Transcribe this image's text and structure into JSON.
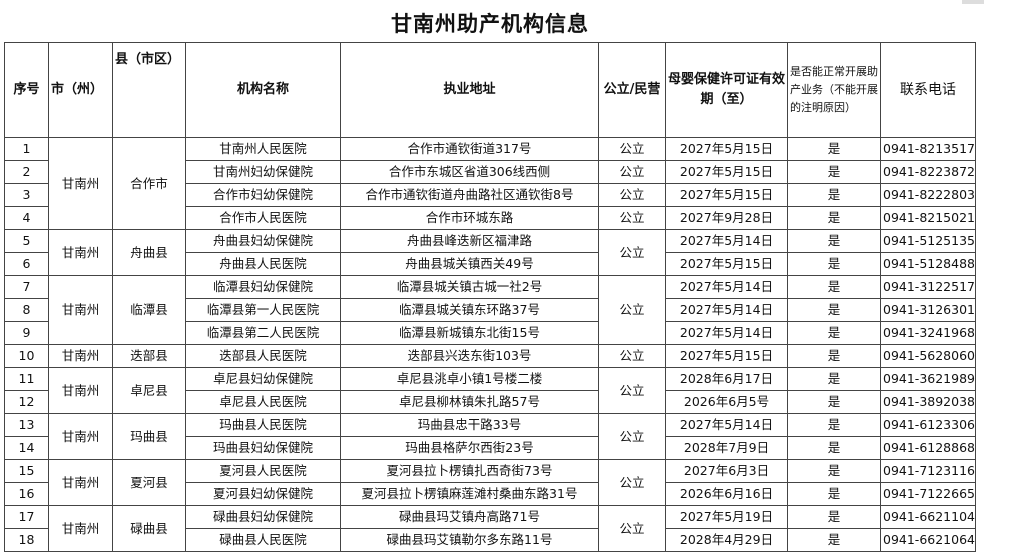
{
  "title": "甘南州助产机构信息",
  "headers": [
    "序号",
    "市（州）",
    "县（市区）",
    "机构名称",
    "执业地址",
    "公立/民营",
    "母婴保健许可证有效期（至）",
    "是否能正常开展助产业务（不能开展的注明原因）",
    "联系电话"
  ],
  "groups": [
    {
      "city": "甘南州",
      "county": "合作市",
      "type_merged": false,
      "rows": [
        {
          "no": "1",
          "name": "甘南州人民医院",
          "address": "合作市通钦街道317号",
          "type": "公立",
          "expiry": "2027年5月15日",
          "available": "是",
          "phone": "0941-8213517"
        },
        {
          "no": "2",
          "name": "甘南州妇幼保健院",
          "address": "合作市东城区省道306线西侧",
          "type": "公立",
          "expiry": "2027年5月15日",
          "available": "是",
          "phone": "0941-8223872"
        },
        {
          "no": "3",
          "name": "合作市妇幼保健院",
          "address": "合作市通钦街道舟曲路社区通钦街8号",
          "type": "公立",
          "expiry": "2027年5月15日",
          "available": "是",
          "phone": "0941-8222803"
        },
        {
          "no": "4",
          "name": "合作市人民医院",
          "address": "合作市环城东路",
          "type": "公立",
          "expiry": "2027年9月28日",
          "available": "是",
          "phone": "0941-8215021"
        }
      ]
    },
    {
      "city": "甘南州",
      "county": "舟曲县",
      "type_merged": true,
      "rows": [
        {
          "no": "5",
          "name": "舟曲县妇幼保健院",
          "address": "舟曲县峰迭新区福津路",
          "type": "公立",
          "expiry": "2027年5月14日",
          "available": "是",
          "phone": "0941-5125135"
        },
        {
          "no": "6",
          "name": "舟曲县人民医院",
          "address": "舟曲县城关镇西关49号",
          "type": "公立",
          "expiry": "2027年5月15日",
          "available": "是",
          "phone": "0941-5128488"
        }
      ]
    },
    {
      "city": "甘南州",
      "county": "临潭县",
      "type_merged": true,
      "rows": [
        {
          "no": "7",
          "name": "临潭县妇幼保健院",
          "address": "临潭县城关镇古城一社2号",
          "type": "公立",
          "expiry": "2027年5月14日",
          "available": "是",
          "phone": "0941-3122517"
        },
        {
          "no": "8",
          "name": "临潭县第一人民医院",
          "address": "临潭县城关镇东环路37号",
          "type": "公立",
          "expiry": "2027年5月14日",
          "available": "是",
          "phone": "0941-3126301"
        },
        {
          "no": "9",
          "name": "临潭县第二人民医院",
          "address": "临潭县新城镇东北街15号",
          "type": "公立",
          "expiry": "2027年5月14日",
          "available": "是",
          "phone": "0941-3241968"
        }
      ]
    },
    {
      "city": "甘南州",
      "county": "迭部县",
      "type_merged": false,
      "rows": [
        {
          "no": "10",
          "name": "迭部县人民医院",
          "address": "迭部县兴迭东街103号",
          "type": "公立",
          "expiry": "2027年5月15日",
          "available": "是",
          "phone": "0941-5628060"
        }
      ]
    },
    {
      "city": "甘南州",
      "county": "卓尼县",
      "type_merged": true,
      "rows": [
        {
          "no": "11",
          "name": "卓尼县妇幼保健院",
          "address": "卓尼县洮卓小镇1号楼二楼",
          "type": "公立",
          "expiry": "2028年6月17日",
          "available": "是",
          "phone": "0941-3621989"
        },
        {
          "no": "12",
          "name": "卓尼县人民医院",
          "address": "卓尼县柳林镇朱扎路57号",
          "type": "公立",
          "expiry": "2026年6月5号",
          "available": "是",
          "phone": "0941-3892038"
        }
      ]
    },
    {
      "city": "甘南州",
      "county": "玛曲县",
      "type_merged": true,
      "rows": [
        {
          "no": "13",
          "name": "玛曲县人民医院",
          "address": "玛曲县忠干路33号",
          "type": "公立",
          "expiry": "2027年5月14日",
          "available": "是",
          "phone": "0941-6123306"
        },
        {
          "no": "14",
          "name": "玛曲县妇幼保健院",
          "address": "玛曲县格萨尔西街23号",
          "type": "公立",
          "expiry": "2028年7月9日",
          "available": "是",
          "phone": "0941-6128868"
        }
      ]
    },
    {
      "city": "甘南州",
      "county": "夏河县",
      "type_merged": true,
      "rows": [
        {
          "no": "15",
          "name": "夏河县人民医院",
          "address": "夏河县拉卜楞镇扎西奇街73号",
          "type": "公立",
          "expiry": "2027年6月3日",
          "available": "是",
          "phone": "0941-7123116"
        },
        {
          "no": "16",
          "name": "夏河县妇幼保健院",
          "address": "夏河县拉卜楞镇麻莲滩村桑曲东路31号",
          "type": "公立",
          "expiry": "2026年6月16日",
          "available": "是",
          "phone": "0941-7122665"
        }
      ]
    },
    {
      "city": "甘南州",
      "county": "碌曲县",
      "type_merged": true,
      "rows": [
        {
          "no": "17",
          "name": "碌曲县妇幼保健院",
          "address": "碌曲县玛艾镇舟高路71号",
          "type": "公立",
          "expiry": "2027年5月19日",
          "available": "是",
          "phone": "0941-6621104"
        },
        {
          "no": "18",
          "name": "碌曲县人民医院",
          "address": "碌曲县玛艾镇勒尔多东路11号",
          "type": "公立",
          "expiry": "2028年4月29日",
          "available": "是",
          "phone": "0941-6621064"
        }
      ]
    }
  ]
}
